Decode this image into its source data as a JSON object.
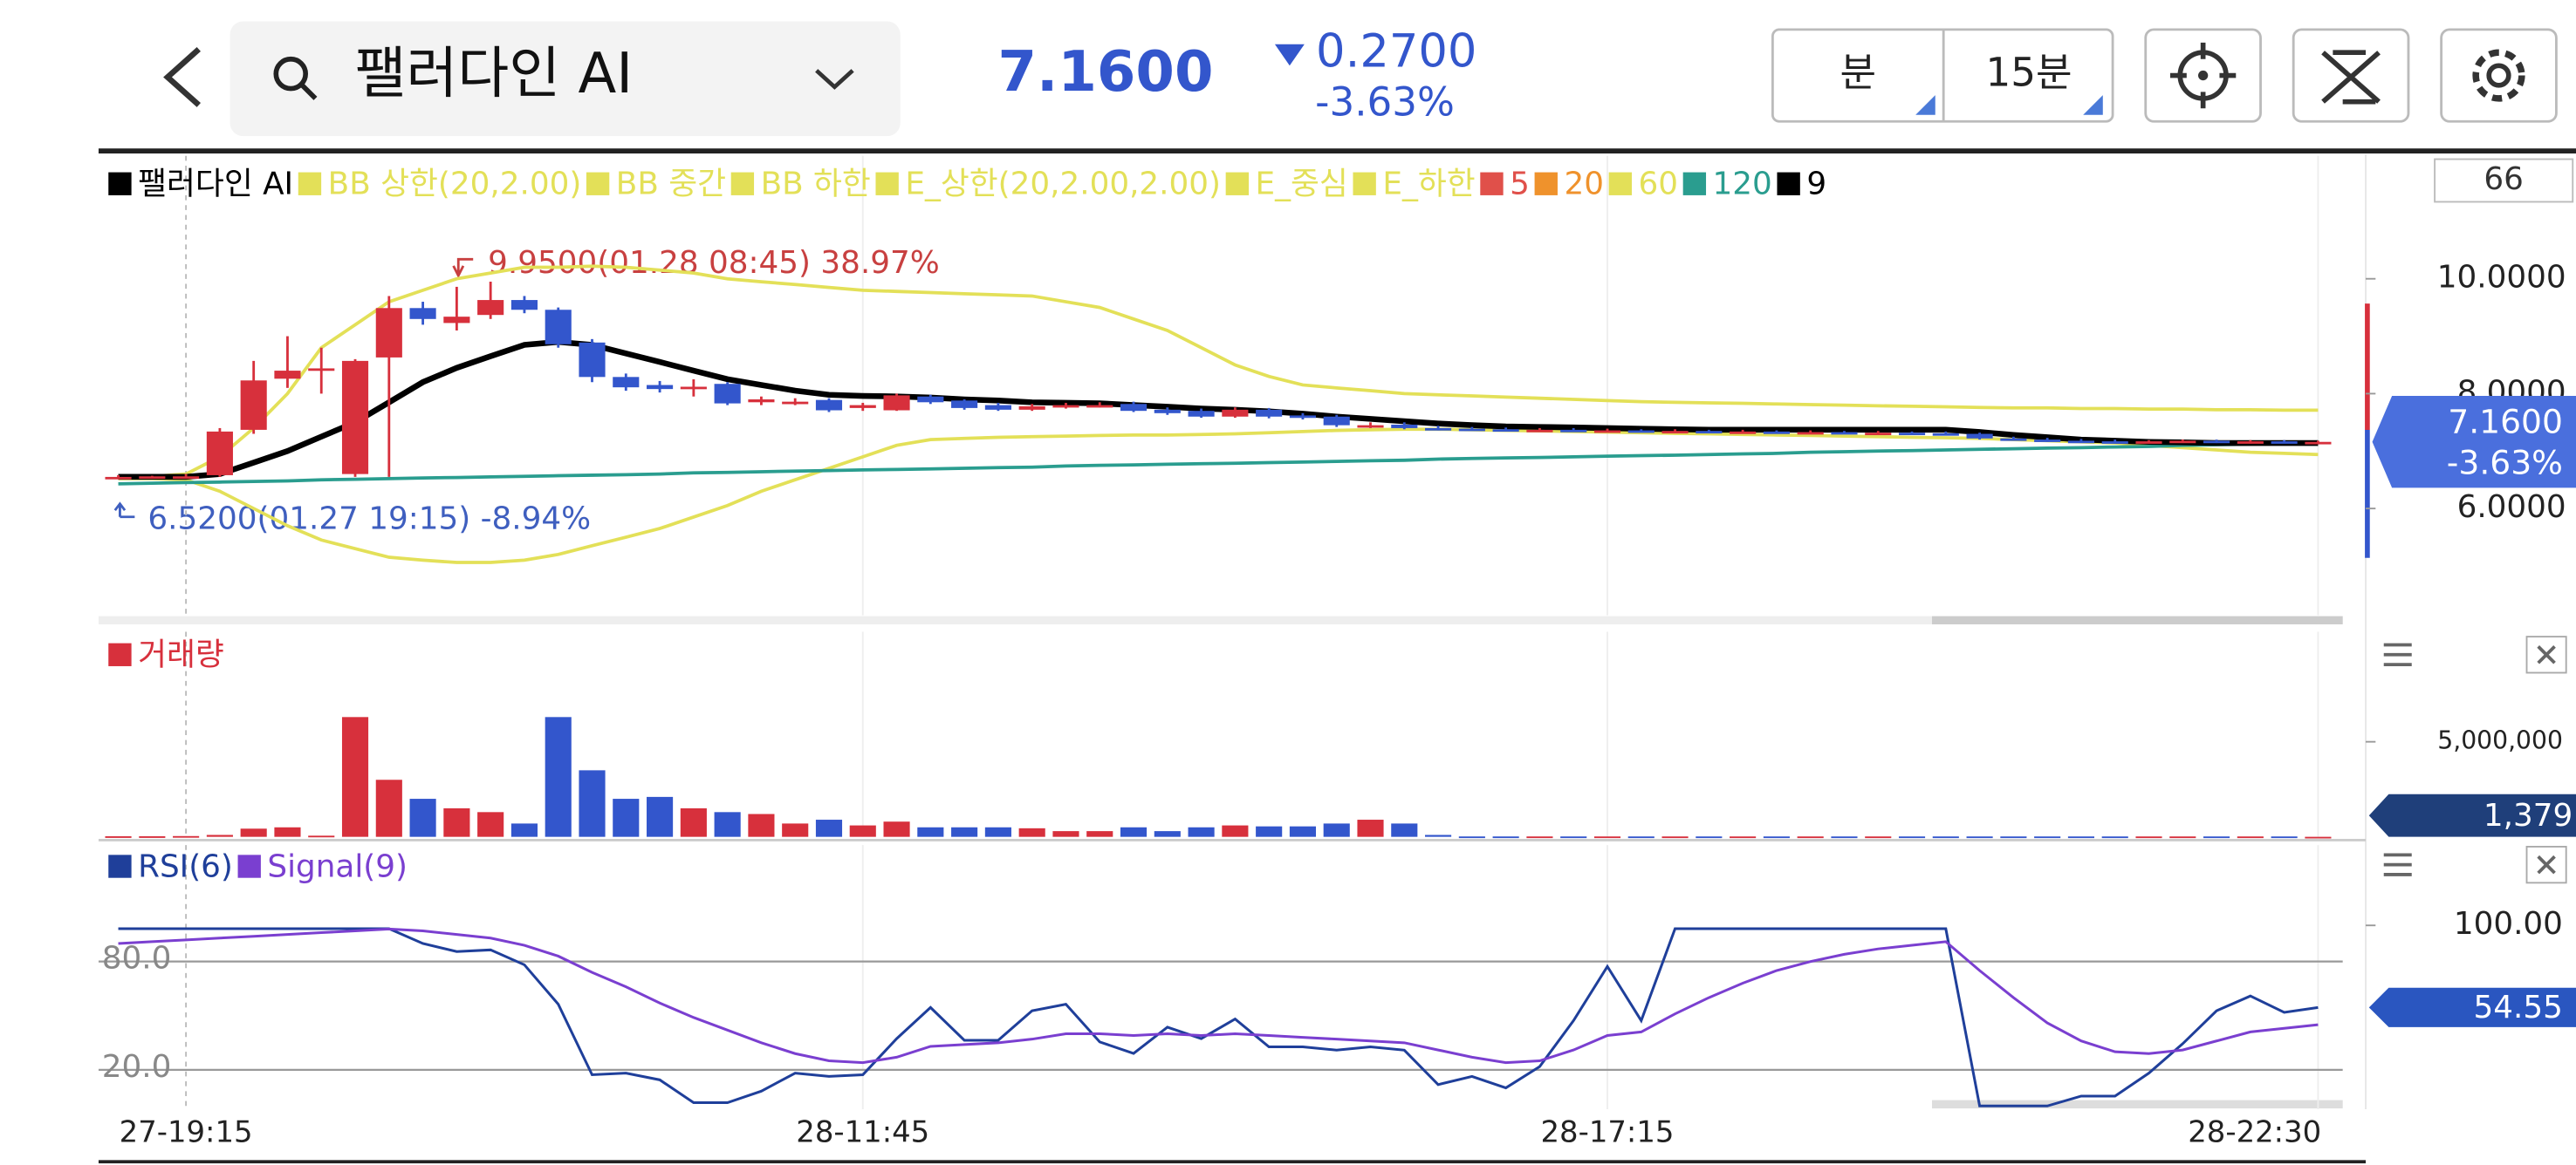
{
  "header": {
    "stock_name": "팰러다인 AI",
    "price": "7.1600",
    "change": "0.2700",
    "change_pct": "-3.63%",
    "period_unit": "분",
    "period": "15분"
  },
  "price_chart": {
    "type": "candlestick",
    "name": "팰러다인 AI",
    "name_color": "#000000",
    "up_color": "#d7303c",
    "down_color": "#3356cc",
    "count": 66,
    "high_annotation": "9.9500(01.28 08:45) 38.97%",
    "low_annotation": "6.5200(01.27 19:15) -8.94%",
    "last_price": "7.1600",
    "last_change": "-3.63%",
    "ylim": [
      4.14,
      12.14
    ],
    "yticks": [
      {
        "value": 6,
        "label": "6.0000"
      },
      {
        "value": 8,
        "label": "8.0000"
      },
      {
        "value": 10,
        "label": "10.0000"
      }
    ],
    "categories": [
      null,
      null,
      "27-19:15",
      null,
      null,
      null,
      null,
      null,
      null,
      null,
      null,
      null,
      null,
      null,
      null,
      null,
      null,
      null,
      null,
      null,
      null,
      null,
      "28-11:45",
      null,
      null,
      null,
      null,
      null,
      null,
      null,
      null,
      null,
      null,
      null,
      null,
      null,
      null,
      null,
      null,
      null,
      null,
      null,
      null,
      null,
      "28-17:15",
      null,
      null,
      null,
      null,
      null,
      null,
      null,
      null,
      null,
      null,
      null,
      null,
      null,
      null,
      null,
      null,
      null,
      null,
      null,
      null,
      "28-22:30"
    ],
    "candles": [
      [
        6.55,
        6.58,
        6.52,
        6.55
      ],
      [
        6.55,
        6.57,
        6.53,
        6.56
      ],
      [
        6.56,
        6.6,
        6.53,
        6.56
      ],
      [
        6.58,
        7.4,
        6.55,
        7.34
      ],
      [
        7.37,
        8.57,
        7.3,
        8.23
      ],
      [
        8.26,
        9.0,
        8.1,
        8.4
      ],
      [
        8.42,
        8.8,
        8.0,
        8.44
      ],
      [
        6.6,
        8.6,
        6.55,
        8.57
      ],
      [
        8.63,
        9.7,
        6.55,
        9.49
      ],
      [
        9.49,
        9.6,
        9.2,
        9.3
      ],
      [
        9.23,
        9.86,
        9.1,
        9.34
      ],
      [
        9.37,
        9.95,
        9.3,
        9.63
      ],
      [
        9.63,
        9.7,
        9.4,
        9.46
      ],
      [
        9.46,
        9.5,
        8.8,
        8.86
      ],
      [
        8.89,
        8.95,
        8.2,
        8.29
      ],
      [
        8.29,
        8.35,
        8.05,
        8.11
      ],
      [
        8.15,
        8.22,
        8.02,
        8.08
      ],
      [
        8.1,
        8.25,
        7.95,
        8.12
      ],
      [
        8.17,
        8.2,
        7.8,
        7.83
      ],
      [
        7.85,
        7.95,
        7.8,
        7.9
      ],
      [
        7.86,
        7.92,
        7.8,
        7.86
      ],
      [
        7.89,
        7.92,
        7.68,
        7.71
      ],
      [
        7.75,
        7.84,
        7.7,
        7.8
      ],
      [
        7.71,
        8.0,
        7.7,
        7.97
      ],
      [
        7.95,
        7.98,
        7.82,
        7.85
      ],
      [
        7.88,
        7.9,
        7.72,
        7.75
      ],
      [
        7.8,
        7.84,
        7.7,
        7.72
      ],
      [
        7.72,
        7.82,
        7.7,
        7.78
      ],
      [
        7.76,
        7.84,
        7.74,
        7.8
      ],
      [
        7.8,
        7.85,
        7.76,
        7.8
      ],
      [
        7.82,
        7.86,
        7.68,
        7.7
      ],
      [
        7.72,
        7.76,
        7.63,
        7.66
      ],
      [
        7.7,
        7.74,
        7.58,
        7.6
      ],
      [
        7.6,
        7.76,
        7.58,
        7.72
      ],
      [
        7.72,
        7.75,
        7.57,
        7.6
      ],
      [
        7.62,
        7.66,
        7.55,
        7.58
      ],
      [
        7.6,
        7.63,
        7.42,
        7.45
      ],
      [
        7.45,
        7.5,
        7.4,
        7.45
      ],
      [
        7.46,
        7.5,
        7.38,
        7.4
      ],
      [
        7.4,
        7.44,
        7.36,
        7.39
      ],
      [
        7.39,
        7.42,
        7.36,
        7.38
      ],
      [
        7.38,
        7.41,
        7.35,
        7.37
      ],
      [
        7.37,
        7.4,
        7.34,
        7.37
      ],
      [
        7.37,
        7.4,
        7.34,
        7.36
      ],
      [
        7.36,
        7.39,
        7.33,
        7.36
      ],
      [
        7.36,
        7.38,
        7.33,
        7.35
      ],
      [
        7.35,
        7.38,
        7.33,
        7.35
      ],
      [
        7.35,
        7.37,
        7.32,
        7.34
      ],
      [
        7.34,
        7.37,
        7.32,
        7.34
      ],
      [
        7.34,
        7.36,
        7.31,
        7.33
      ],
      [
        7.33,
        7.36,
        7.31,
        7.33
      ],
      [
        7.33,
        7.35,
        7.3,
        7.32
      ],
      [
        7.32,
        7.35,
        7.3,
        7.32
      ],
      [
        7.32,
        7.34,
        7.29,
        7.31
      ],
      [
        7.31,
        7.34,
        7.28,
        7.3
      ],
      [
        7.3,
        7.32,
        7.2,
        7.22
      ],
      [
        7.22,
        7.25,
        7.18,
        7.2
      ],
      [
        7.2,
        7.23,
        7.16,
        7.18
      ],
      [
        7.18,
        7.21,
        7.15,
        7.17
      ],
      [
        7.17,
        7.2,
        7.14,
        7.16
      ],
      [
        7.16,
        7.19,
        7.13,
        7.17
      ],
      [
        7.17,
        7.2,
        7.14,
        7.18
      ],
      [
        7.18,
        7.2,
        7.14,
        7.16
      ],
      [
        7.16,
        7.19,
        7.13,
        7.17
      ],
      [
        7.17,
        7.19,
        7.14,
        7.15
      ],
      [
        7.15,
        7.18,
        7.13,
        7.16
      ]
    ],
    "indicators": [
      {
        "name": "BB 상한(20,2.00)",
        "color": "#e3e058",
        "values": [
          6.55,
          6.56,
          6.6,
          6.9,
          7.4,
          8.0,
          8.8,
          9.2,
          9.6,
          9.8,
          10.0,
          10.1,
          10.2,
          10.2,
          10.22,
          10.2,
          10.15,
          10.1,
          10.0,
          9.95,
          9.9,
          9.85,
          9.8,
          9.78,
          9.76,
          9.74,
          9.72,
          9.7,
          9.6,
          9.5,
          9.3,
          9.1,
          8.8,
          8.5,
          8.3,
          8.15,
          8.1,
          8.05,
          8.0,
          7.98,
          7.96,
          7.94,
          7.92,
          7.9,
          7.88,
          7.86,
          7.85,
          7.84,
          7.83,
          7.82,
          7.81,
          7.8,
          7.79,
          7.78,
          7.77,
          7.76,
          7.75,
          7.75,
          7.74,
          7.74,
          7.73,
          7.73,
          7.72,
          7.72,
          7.71,
          7.71
        ]
      },
      {
        "name": "BB 중간",
        "color": "#e3e058"
      },
      {
        "name": "BB 하한",
        "color": "#e3e058",
        "values": [
          6.52,
          6.52,
          6.5,
          6.3,
          6.0,
          5.7,
          5.45,
          5.3,
          5.15,
          5.1,
          5.06,
          5.06,
          5.1,
          5.2,
          5.35,
          5.5,
          5.65,
          5.85,
          6.05,
          6.3,
          6.5,
          6.7,
          6.9,
          7.1,
          7.2,
          7.22,
          7.24,
          7.25,
          7.26,
          7.27,
          7.28,
          7.28,
          7.29,
          7.3,
          7.32,
          7.34,
          7.36,
          7.37,
          7.38,
          7.38,
          7.37,
          7.36,
          7.35,
          7.34,
          7.33,
          7.32,
          7.31,
          7.3,
          7.29,
          7.28,
          7.27,
          7.26,
          7.25,
          7.24,
          7.23,
          7.22,
          7.2,
          7.18,
          7.16,
          7.14,
          7.1,
          7.06,
          7.02,
          6.98,
          6.96,
          6.94
        ]
      },
      {
        "name": "E_상한(20,2.00,2.00)",
        "color": "#e3e058"
      },
      {
        "name": "E_중심",
        "color": "#e3e058"
      },
      {
        "name": "E_하한",
        "color": "#e3e058"
      },
      {
        "name": "5",
        "color": "#e0504a"
      },
      {
        "name": "20",
        "color": "#ef922c"
      },
      {
        "name": "60",
        "color": "#e3e058"
      },
      {
        "name": "120",
        "color": "#2a9d8f",
        "values": [
          6.43,
          6.44,
          6.45,
          6.46,
          6.47,
          6.48,
          6.5,
          6.51,
          6.52,
          6.53,
          6.54,
          6.55,
          6.56,
          6.57,
          6.58,
          6.59,
          6.6,
          6.62,
          6.63,
          6.64,
          6.65,
          6.66,
          6.67,
          6.68,
          6.69,
          6.7,
          6.71,
          6.72,
          6.74,
          6.75,
          6.76,
          6.77,
          6.78,
          6.79,
          6.8,
          6.81,
          6.82,
          6.83,
          6.84,
          6.86,
          6.87,
          6.88,
          6.89,
          6.9,
          6.91,
          6.92,
          6.93,
          6.94,
          6.95,
          6.96,
          6.98,
          6.99,
          7.0,
          7.01,
          7.02,
          7.03,
          7.04,
          7.05,
          7.06,
          7.07,
          7.08,
          7.1,
          7.11,
          7.12,
          7.13,
          7.14
        ]
      },
      {
        "name": "9",
        "color": "#000000",
        "values": [
          6.55,
          6.55,
          6.55,
          6.6,
          6.8,
          7.0,
          7.25,
          7.5,
          7.85,
          8.2,
          8.45,
          8.65,
          8.85,
          8.9,
          8.85,
          8.7,
          8.55,
          8.4,
          8.25,
          8.15,
          8.05,
          7.98,
          7.96,
          7.95,
          7.93,
          7.9,
          7.88,
          7.85,
          7.84,
          7.83,
          7.8,
          7.77,
          7.74,
          7.72,
          7.69,
          7.65,
          7.6,
          7.56,
          7.52,
          7.48,
          7.45,
          7.43,
          7.42,
          7.41,
          7.4,
          7.39,
          7.38,
          7.37,
          7.37,
          7.37,
          7.37,
          7.37,
          7.37,
          7.37,
          7.37,
          7.33,
          7.28,
          7.24,
          7.2,
          7.18,
          7.16,
          7.15,
          7.14,
          7.14,
          7.14,
          7.14
        ]
      }
    ]
  },
  "volume_chart": {
    "type": "bar",
    "title": "거래량",
    "color": "#d7303c",
    "last_label": "1,379",
    "ylim": [
      0,
      8200000
    ],
    "yticks": [
      {
        "value": 5000000,
        "label": "5,000,000"
      }
    ],
    "values": [
      30000,
      30000,
      40000,
      100000,
      430000,
      500000,
      60000,
      6300000,
      3000000,
      2000000,
      1500000,
      1300000,
      700000,
      6300000,
      3500000,
      2000000,
      2100000,
      1500000,
      1300000,
      1200000,
      700000,
      900000,
      600000,
      800000,
      500000,
      500000,
      500000,
      450000,
      300000,
      300000,
      500000,
      300000,
      500000,
      600000,
      550000,
      550000,
      700000,
      900000,
      700000,
      100000,
      20000,
      20000,
      20000,
      20000,
      20000,
      20000,
      20000,
      20000,
      20000,
      20000,
      20000,
      20000,
      20000,
      20000,
      20000,
      20000,
      20000,
      20000,
      20000,
      20000,
      20000,
      20000,
      20000,
      20000,
      20000,
      1379
    ]
  },
  "rsi_chart": {
    "type": "line",
    "last_label": "54.55",
    "ylim": [
      -1.8,
      143.6
    ],
    "yticks": [
      {
        "value": 80,
        "label": "80.0"
      },
      {
        "value": 20,
        "label": "20.0"
      }
    ],
    "y2ticks": [
      {
        "value": 100,
        "label": "100.00"
      }
    ],
    "series": [
      {
        "name": "RSI(6)",
        "color": "#1f3f9a",
        "values": [
          98.2,
          98.2,
          98.2,
          98.2,
          98.2,
          98.2,
          98.2,
          98.2,
          98.2,
          90,
          85.5,
          86.4,
          78.2,
          56.4,
          17.3,
          18.2,
          14.5,
          1.8,
          1.8,
          8.2,
          18.2,
          16.4,
          17.3,
          37.3,
          54.5,
          36.4,
          36.4,
          52.7,
          56.4,
          35.5,
          29.1,
          43.6,
          37.3,
          48.2,
          32.7,
          32.7,
          30.9,
          32.7,
          30.9,
          11.8,
          16.4,
          10,
          21.8,
          47.3,
          77.3,
          47.3,
          98.2,
          98.2,
          98.2,
          98.2,
          98.2,
          98.2,
          98.2,
          98.2,
          98.2,
          0,
          0,
          0,
          5.5,
          5.5,
          18.2,
          34.5,
          52.7,
          60.9,
          51.8,
          54.55
        ]
      },
      {
        "name": "Signal(9)",
        "color": "#7a3fd0",
        "values": [
          90,
          91,
          92,
          93,
          94,
          95,
          96,
          97,
          98,
          97,
          95,
          93,
          89,
          83,
          74,
          66,
          57,
          49,
          42,
          35,
          29,
          25,
          24,
          27,
          33,
          34,
          35,
          37,
          40,
          40,
          39,
          40,
          39,
          40,
          39,
          38,
          37,
          36,
          35,
          31,
          27,
          24,
          25,
          31,
          39,
          41,
          51,
          60,
          68,
          75,
          80,
          84,
          87,
          89,
          91,
          75,
          60,
          46,
          36,
          30,
          29,
          31,
          36,
          41,
          43,
          45
        ]
      }
    ]
  }
}
